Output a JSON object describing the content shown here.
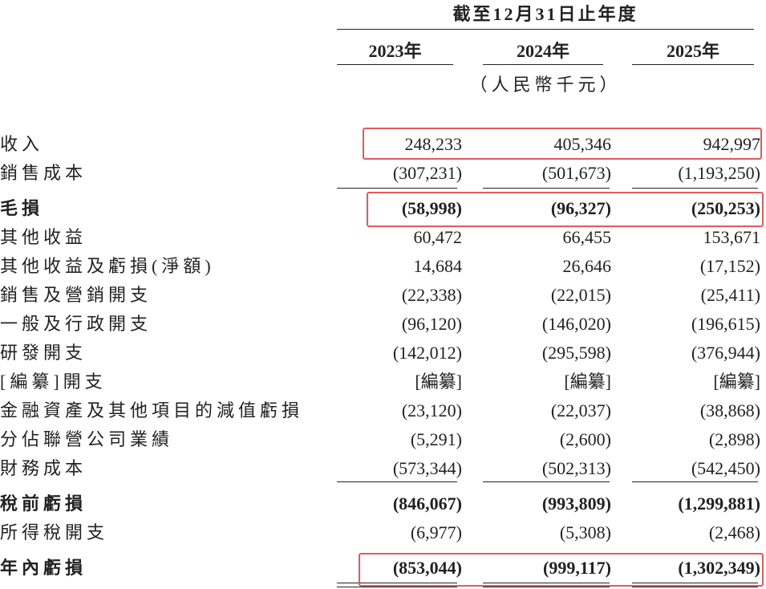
{
  "header": {
    "title": "截至12月31日止年度",
    "years": [
      "2023年",
      "2024年",
      "2025年"
    ],
    "unit": "（人民幣千元）"
  },
  "table": {
    "rows": [
      {
        "label": "收入",
        "values": [
          "248,233",
          "405,346",
          "942,997"
        ]
      },
      {
        "label": "銷售成本",
        "values": [
          "(307,231)",
          "(501,673)",
          "(1,193,250)"
        ]
      },
      {
        "label": "毛損",
        "values": [
          "(58,998)",
          "(96,327)",
          "(250,253)"
        ]
      },
      {
        "label": "其他收益",
        "values": [
          "60,472",
          "66,455",
          "153,671"
        ]
      },
      {
        "label": "其他收益及虧損(淨額)",
        "values": [
          "14,684",
          "26,646",
          "(17,152)"
        ]
      },
      {
        "label": "銷售及營銷開支",
        "values": [
          "(22,338)",
          "(22,015)",
          "(25,411)"
        ]
      },
      {
        "label": "一般及行政開支",
        "values": [
          "(96,120)",
          "(146,020)",
          "(196,615)"
        ]
      },
      {
        "label": "研發開支",
        "values": [
          "(142,012)",
          "(295,598)",
          "(376,944)"
        ]
      },
      {
        "label": "[編纂]開支",
        "values": [
          "[編纂]",
          "[編纂]",
          "[編纂]"
        ]
      },
      {
        "label": "金融資產及其他項目的減值虧損",
        "values": [
          "(23,120)",
          "(22,037)",
          "(38,868)"
        ]
      },
      {
        "label": "分佔聯營公司業績",
        "values": [
          "(5,291)",
          "(2,600)",
          "(2,898)"
        ]
      },
      {
        "label": "財務成本",
        "values": [
          "(573,344)",
          "(502,313)",
          "(542,450)"
        ]
      },
      {
        "label": "稅前虧損",
        "values": [
          "(846,067)",
          "(993,809)",
          "(1,299,881)"
        ]
      },
      {
        "label": "所得稅開支",
        "values": [
          "(6,977)",
          "(5,308)",
          "(2,468)"
        ]
      },
      {
        "label": "年內虧損",
        "values": [
          "(853,044)",
          "(999,117)",
          "(1,302,349)"
        ]
      }
    ]
  }
}
